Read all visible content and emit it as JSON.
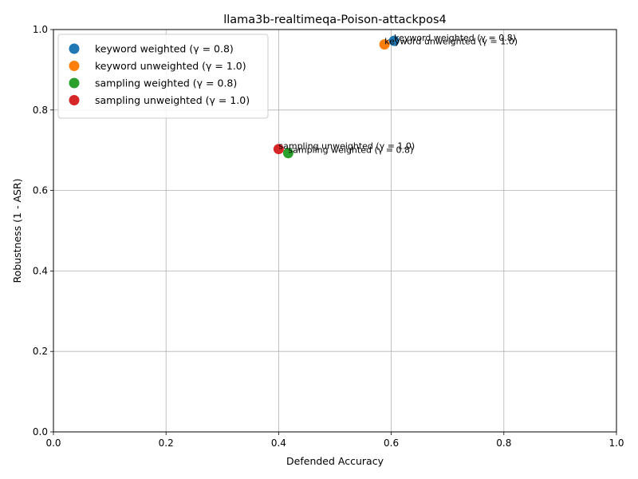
{
  "chart_data": {
    "type": "scatter",
    "title": "llama3b-realtimeqa-Poison-attackpos4",
    "xlabel": "Defended Accuracy",
    "ylabel": "Robustness (1 - ASR)",
    "xlim": [
      0.0,
      1.0
    ],
    "ylim": [
      0.0,
      1.0
    ],
    "xticks": [
      "0.0",
      "0.2",
      "0.4",
      "0.6",
      "0.8",
      "1.0"
    ],
    "yticks": [
      "0.0",
      "0.2",
      "0.4",
      "0.6",
      "0.8",
      "1.0"
    ],
    "grid": true,
    "legend_position": "top-left",
    "series": [
      {
        "name": "keyword weighted (γ = 0.8)",
        "color": "#1f77b4",
        "x": 0.605,
        "y": 0.972
      },
      {
        "name": "keyword unweighted (γ = 1.0)",
        "color": "#ff7f0e",
        "x": 0.588,
        "y": 0.963
      },
      {
        "name": "sampling weighted (γ = 0.8)",
        "color": "#2ca02c",
        "x": 0.417,
        "y": 0.693
      },
      {
        "name": "sampling unweighted (γ = 1.0)",
        "color": "#d62728",
        "x": 0.4,
        "y": 0.703
      }
    ],
    "annotations": [
      {
        "text": "keyword weighted (γ = 0.8)",
        "series": 0
      },
      {
        "text": "keyword unweighted (γ = 1.0)",
        "series": 1
      },
      {
        "text": "sampling weighted (γ = 0.8)",
        "series": 2
      },
      {
        "text": "sampling unweighted (γ = 1.0)",
        "series": 3
      }
    ]
  }
}
